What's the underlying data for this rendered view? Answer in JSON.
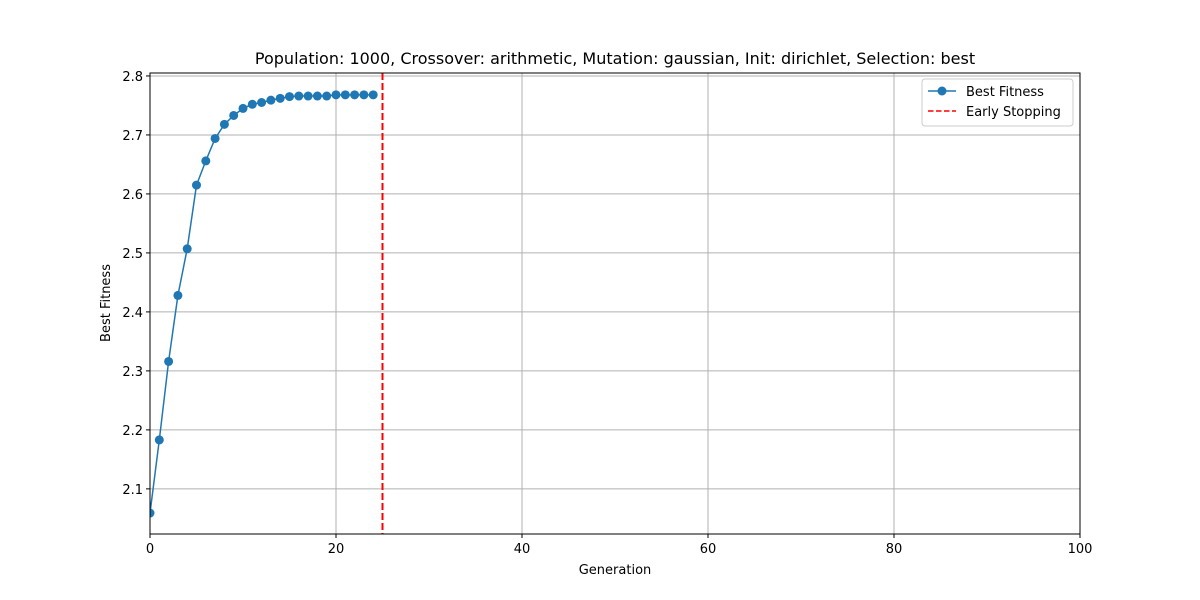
{
  "chart_data": {
    "type": "line",
    "title": "Population: 1000, Crossover: arithmetic, Mutation: gaussian, Init: dirichlet, Selection: best",
    "xlabel": "Generation",
    "ylabel": "Best Fitness",
    "xlim": [
      0,
      100
    ],
    "ylim": [
      2.0235,
      2.805
    ],
    "xticks": [
      0,
      20,
      40,
      60,
      80,
      100
    ],
    "yticks": [
      2.1,
      2.2,
      2.3,
      2.4,
      2.5,
      2.6,
      2.7,
      2.8
    ],
    "grid": true,
    "legend_position": "upper right",
    "series": [
      {
        "name": "Best Fitness",
        "color": "#1f77b4",
        "marker": "circle",
        "x": [
          0,
          1,
          2,
          3,
          4,
          5,
          6,
          7,
          8,
          9,
          10,
          11,
          12,
          13,
          14,
          15,
          16,
          17,
          18,
          19,
          20,
          21,
          22,
          23,
          24
        ],
        "y": [
          2.059,
          2.183,
          2.316,
          2.428,
          2.507,
          2.615,
          2.656,
          2.694,
          2.718,
          2.733,
          2.745,
          2.752,
          2.755,
          2.759,
          2.762,
          2.765,
          2.766,
          2.766,
          2.766,
          2.766,
          2.768,
          2.768,
          2.768,
          2.768,
          2.768
        ]
      }
    ],
    "vlines": [
      {
        "name": "Early Stopping",
        "x": 25,
        "color": "#ff0000",
        "style": "dashed"
      }
    ]
  }
}
